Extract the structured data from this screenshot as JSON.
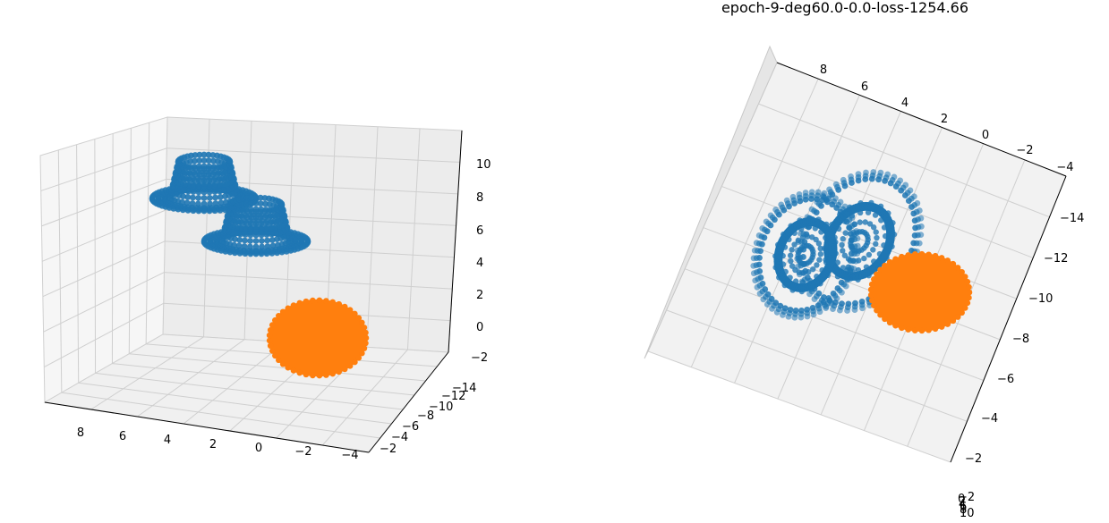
{
  "chart_data": [
    {
      "type": "scatter3d",
      "title": "",
      "series": [
        {
          "color": "#1f77b4",
          "shapes": [
            {
              "kind": "hat"
            },
            {
              "kind": "hat"
            }
          ]
        },
        {
          "color": "#ff7f0e",
          "shapes": [
            {
              "kind": "sphere"
            }
          ]
        }
      ],
      "x_ticks": [
        "8",
        "6",
        "4",
        "2",
        "0",
        "−2",
        "−4"
      ],
      "y_ticks": [
        "−2",
        "−4",
        "−6",
        "−8",
        "−10",
        "−12",
        "−14"
      ],
      "z_ticks": [
        "10",
        "8",
        "6",
        "4",
        "2",
        "0",
        "−2"
      ],
      "grid": true
    },
    {
      "type": "scatter3d",
      "title": "epoch-9-deg60.0-0.0-loss-1254.66",
      "series": [
        {
          "color": "#1f77b4",
          "shapes": [
            {
              "kind": "hat"
            },
            {
              "kind": "hat"
            }
          ]
        },
        {
          "color": "#ff7f0e",
          "shapes": [
            {
              "kind": "sphere"
            }
          ]
        }
      ],
      "x_ticks": [
        "8",
        "6",
        "4",
        "2",
        "0",
        "−2",
        "−4"
      ],
      "y_ticks": [
        "−14",
        "−12",
        "−10",
        "−8",
        "−6",
        "−4",
        "−2"
      ],
      "z_ticks": [
        "−2",
        "0",
        "2",
        "4",
        "6",
        "8",
        "10"
      ],
      "grid": true
    }
  ]
}
